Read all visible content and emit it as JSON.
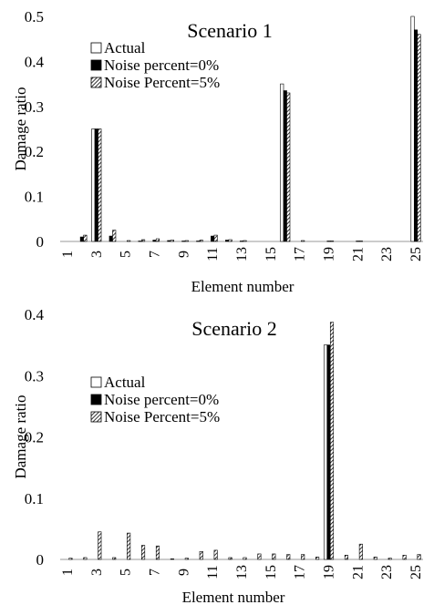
{
  "chart_data": [
    {
      "type": "bar",
      "title": "Scenario 1",
      "xlabel": "Element number",
      "ylabel": "Damage ratio",
      "ylim": [
        0,
        0.5
      ],
      "yticks": [
        0,
        0.1,
        0.2,
        0.3,
        0.4,
        0.5
      ],
      "ytick_labels": [
        "0",
        "0.1",
        "0.2",
        "0.3",
        "0.4",
        "0.5"
      ],
      "categories": [
        "1",
        "2",
        "3",
        "4",
        "5",
        "6",
        "7",
        "8",
        "9",
        "10",
        "11",
        "12",
        "13",
        "14",
        "15",
        "16",
        "17",
        "18",
        "19",
        "20",
        "21",
        "22",
        "23",
        "24",
        "25"
      ],
      "xtick_labels": [
        "1",
        "3",
        "5",
        "7",
        "9",
        "11",
        "13",
        "15",
        "17",
        "19",
        "21",
        "23",
        "25"
      ],
      "legend_position": "top-left",
      "grid": false,
      "series": [
        {
          "name": "Actual",
          "fill": "#ffffff",
          "pattern": "none",
          "values": [
            0,
            0,
            0.25,
            0,
            0,
            0,
            0,
            0,
            0,
            0,
            0,
            0,
            0,
            0,
            0,
            0.35,
            0,
            0,
            0,
            0,
            0,
            0,
            0,
            0,
            0.5
          ]
        },
        {
          "name": "Noise percent=0%",
          "fill": "#000000",
          "pattern": "solid",
          "values": [
            0,
            0.01,
            0.25,
            0.012,
            0,
            0.001,
            0.003,
            0.002,
            0.001,
            0.001,
            0.012,
            0.003,
            0.001,
            0,
            0,
            0.335,
            0,
            0,
            0.001,
            0,
            0.001,
            0,
            0,
            0,
            0.47
          ]
        },
        {
          "name": "Noise Percent=5%",
          "fill": "#ffffff",
          "pattern": "diagonal-hatch",
          "values": [
            0,
            0.014,
            0.25,
            0.025,
            0.002,
            0.004,
            0.006,
            0.003,
            0.002,
            0.003,
            0.014,
            0.004,
            0.002,
            0,
            0,
            0.33,
            0.002,
            0,
            0.001,
            0,
            0.001,
            0,
            0,
            0,
            0.46
          ]
        }
      ]
    },
    {
      "type": "bar",
      "title": "Scenario 2",
      "xlabel": "Element number",
      "ylabel": "Damage ratio",
      "ylim": [
        0,
        0.4
      ],
      "yticks": [
        0,
        0.1,
        0.2,
        0.3,
        0.4
      ],
      "ytick_labels": [
        "0",
        "0.1",
        "0.2",
        "0.3",
        "0.4"
      ],
      "categories": [
        "1",
        "2",
        "3",
        "4",
        "5",
        "6",
        "7",
        "8",
        "9",
        "10",
        "11",
        "12",
        "13",
        "14",
        "15",
        "16",
        "17",
        "18",
        "19",
        "20",
        "21",
        "22",
        "23",
        "24",
        "25"
      ],
      "xtick_labels": [
        "1",
        "3",
        "5",
        "7",
        "9",
        "11",
        "13",
        "15",
        "17",
        "19",
        "21",
        "23",
        "25"
      ],
      "legend_position": "top-left",
      "grid": false,
      "series": [
        {
          "name": "Actual",
          "fill": "#ffffff",
          "pattern": "none",
          "values": [
            0,
            0,
            0,
            0,
            0,
            0,
            0,
            0,
            0,
            0,
            0,
            0,
            0,
            0,
            0,
            0,
            0,
            0,
            0.35,
            0,
            0,
            0,
            0,
            0,
            0
          ]
        },
        {
          "name": "Noise percent=0%",
          "fill": "#000000",
          "pattern": "solid",
          "values": [
            0,
            0,
            0,
            0,
            0,
            0,
            0,
            0,
            0,
            0,
            0,
            0,
            0,
            0,
            0,
            0,
            0,
            0,
            0.35,
            0,
            0,
            0,
            0,
            0,
            0
          ]
        },
        {
          "name": "Noise Percent=5%",
          "fill": "#ffffff",
          "pattern": "diagonal-hatch",
          "values": [
            0.002,
            0.003,
            0.045,
            0.003,
            0.043,
            0.023,
            0.022,
            0.001,
            0.002,
            0.013,
            0.015,
            0.003,
            0.003,
            0.009,
            0.009,
            0.008,
            0.008,
            0.004,
            0.387,
            0.007,
            0.025,
            0.004,
            0.002,
            0.007,
            0.008
          ]
        }
      ]
    }
  ]
}
